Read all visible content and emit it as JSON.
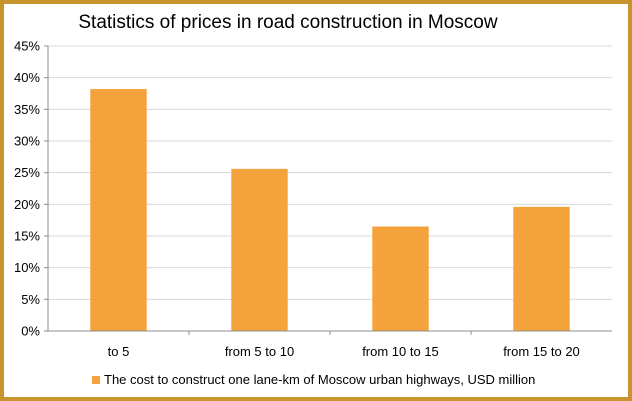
{
  "chart_data": {
    "type": "bar",
    "title": "Statistics of prices in road construction in Moscow",
    "categories": [
      "to 5",
      "from 5 to 10",
      "from 10 to 15",
      "from 15 to 20"
    ],
    "series": [
      {
        "name": "The cost to construct one lane-km of Moscow urban highways, USD million",
        "values": [
          38.2,
          25.6,
          16.5,
          19.6
        ]
      }
    ],
    "ylim": [
      0,
      45
    ],
    "yticks": [
      0,
      5,
      10,
      15,
      20,
      25,
      30,
      35,
      40,
      45
    ],
    "ytick_labels": [
      "0%",
      "5%",
      "10%",
      "15%",
      "20%",
      "25%",
      "30%",
      "35%",
      "40%",
      "45%"
    ],
    "grid": true,
    "legend": "bottom",
    "colors": {
      "bar": "#f4a33c",
      "grid": "#d9d9d9",
      "axis": "#8c8c8c",
      "border": "#c8942e"
    }
  }
}
